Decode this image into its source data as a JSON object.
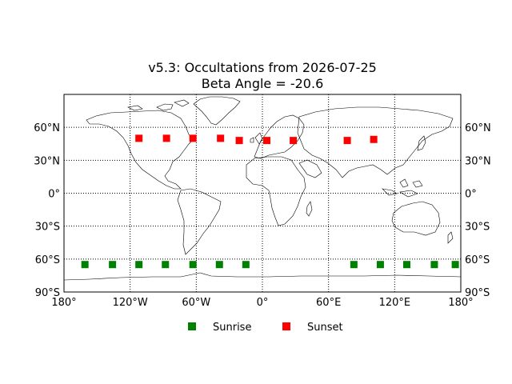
{
  "chart_data": {
    "type": "scatter",
    "title": "v5.3: Occultations from 2026-07-25",
    "subtitle": "Beta Angle = -20.6",
    "xlim": [
      -180,
      180
    ],
    "ylim": [
      -90,
      90
    ],
    "x_ticks": [
      -180,
      -120,
      -60,
      0,
      60,
      120,
      180
    ],
    "x_tick_labels": [
      "180°",
      "120°W",
      "60°W",
      "0°",
      "60°E",
      "120°E",
      "180°"
    ],
    "y_ticks": [
      -90,
      -60,
      -30,
      0,
      30,
      60
    ],
    "y_tick_labels": [
      "90°S",
      "60°S",
      "30°S",
      "0°",
      "30°N",
      "60°N"
    ],
    "grid": true,
    "grid_style": "dotted",
    "background": "world coastline map",
    "legend_position": "bottom-center",
    "series": [
      {
        "name": "Sunrise",
        "color": "#008000",
        "marker": "square",
        "points": [
          {
            "lon": -161,
            "lat": -65
          },
          {
            "lon": -136,
            "lat": -65
          },
          {
            "lon": -112,
            "lat": -65
          },
          {
            "lon": -88,
            "lat": -65
          },
          {
            "lon": -63,
            "lat": -65
          },
          {
            "lon": -39,
            "lat": -65
          },
          {
            "lon": -15,
            "lat": -65
          },
          {
            "lon": 83,
            "lat": -65
          },
          {
            "lon": 107,
            "lat": -65
          },
          {
            "lon": 131,
            "lat": -65
          },
          {
            "lon": 156,
            "lat": -65
          },
          {
            "lon": 175,
            "lat": -65
          }
        ]
      },
      {
        "name": "Sunset",
        "color": "#ff0000",
        "marker": "square",
        "points": [
          {
            "lon": -112,
            "lat": 50
          },
          {
            "lon": -87,
            "lat": 50
          },
          {
            "lon": -63,
            "lat": 50
          },
          {
            "lon": -38,
            "lat": 50
          },
          {
            "lon": -21,
            "lat": 48
          },
          {
            "lon": 4,
            "lat": 48
          },
          {
            "lon": 28,
            "lat": 48
          },
          {
            "lon": 77,
            "lat": 48
          },
          {
            "lon": 101,
            "lat": 49
          }
        ]
      }
    ]
  }
}
